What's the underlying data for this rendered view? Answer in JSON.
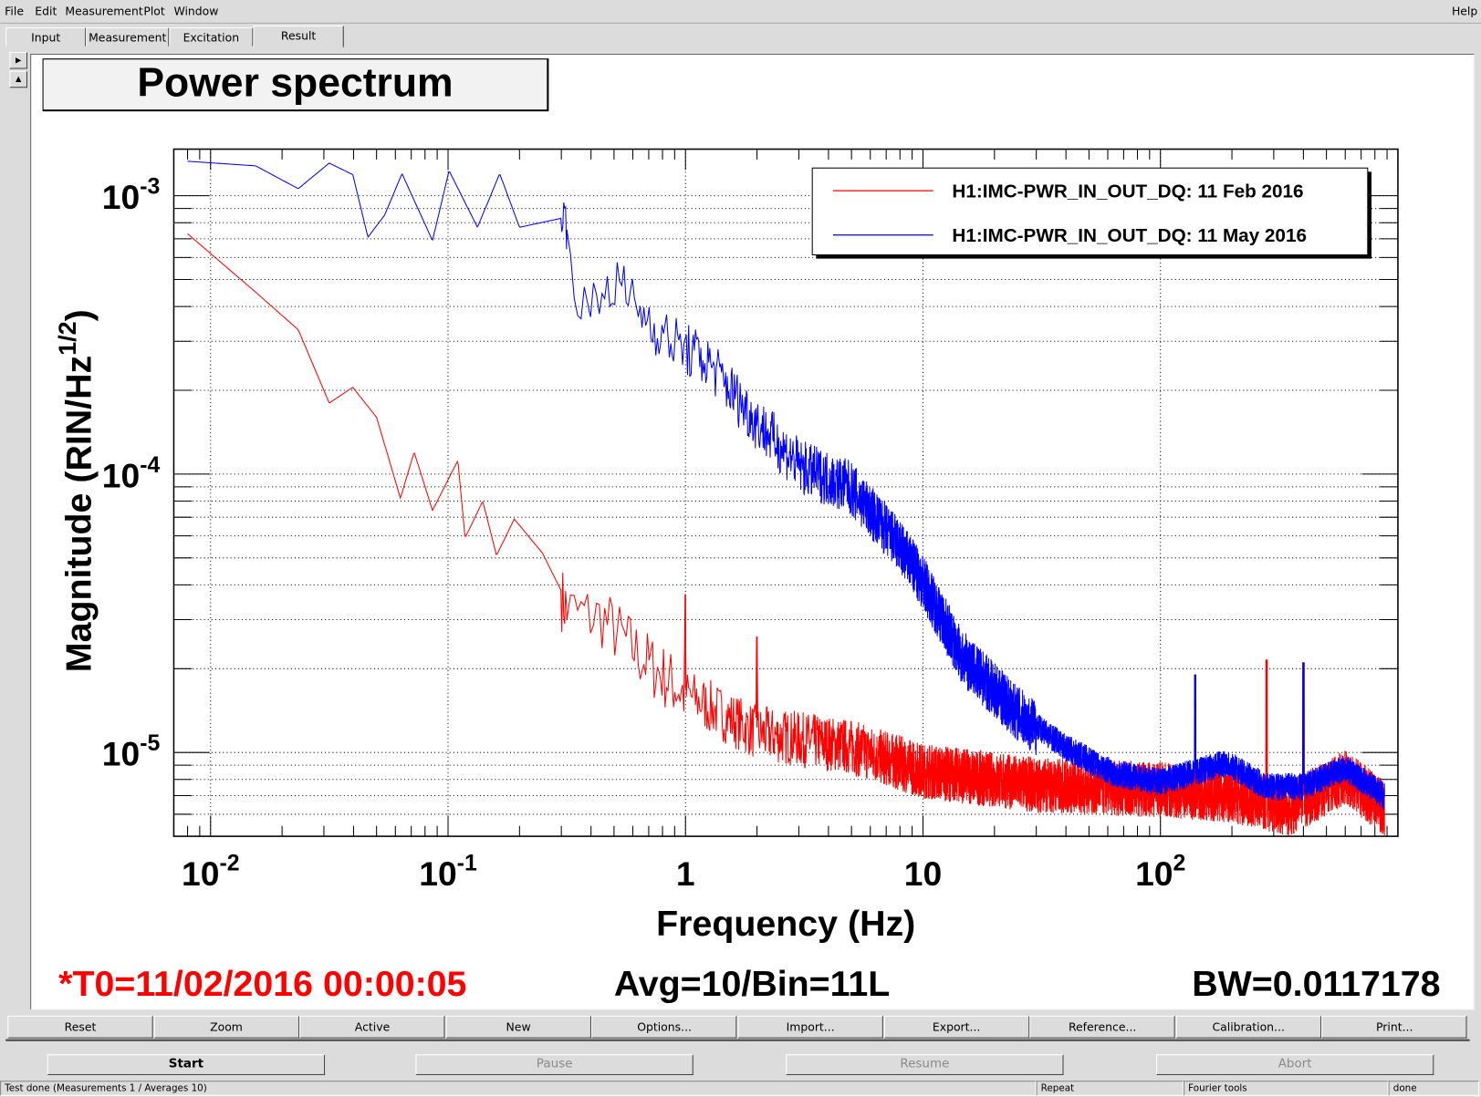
{
  "menu": {
    "items": [
      "File",
      "Edit",
      "Measurement",
      "Plot",
      "Window"
    ],
    "help": "Help"
  },
  "tabs": [
    {
      "label": "Input"
    },
    {
      "label": "Measurement"
    },
    {
      "label": "Excitation"
    },
    {
      "label": "Result",
      "active": true
    }
  ],
  "side_buttons": {
    "right_arrow": "arrow-right-icon",
    "up_arrow": "arrow-up-icon"
  },
  "plot": {
    "title": "Power spectrum",
    "t0": "*T0=11/02/2016 00:00:05",
    "avg": "Avg=10/Bin=11L",
    "bw": "BW=0.0117178",
    "colors": {
      "red": "#ff0000",
      "blue": "#0000ff",
      "t0": "#ff0000"
    }
  },
  "chart_data": {
    "type": "line",
    "title": "Power spectrum",
    "xlabel": "Frequency (Hz)",
    "ylabel_main": "Magnitude (RIN/Hz",
    "ylabel_sup": "1/2",
    "ylabel_end": ")",
    "xscale": "log",
    "yscale": "log",
    "xlim": [
      0.007,
      1000
    ],
    "ylim": [
      5e-06,
      0.00147
    ],
    "grid": true,
    "legend_placement": "top-right",
    "x_ticks": [
      {
        "value": 0.01,
        "base": "10",
        "exp": "-2"
      },
      {
        "value": 0.1,
        "base": "10",
        "exp": "-1"
      },
      {
        "value": 1,
        "base": "1",
        "exp": ""
      },
      {
        "value": 10,
        "base": "10",
        "exp": ""
      },
      {
        "value": 100,
        "base": "10",
        "exp": "2"
      }
    ],
    "y_ticks": [
      {
        "value": 0.001,
        "base": "10",
        "exp": "-3"
      },
      {
        "value": 0.0001,
        "base": "10",
        "exp": "-4"
      },
      {
        "value": 1e-05,
        "base": "10",
        "exp": "-5"
      }
    ],
    "series": [
      {
        "name": "H1:IMC-PWR_IN_OUT_DQ: 11 Feb 2016",
        "color": "#ff0000",
        "points": [
          [
            0.008,
            0.00073
          ],
          [
            0.0155,
            0.00045
          ],
          [
            0.0234,
            0.00033
          ],
          [
            0.0316,
            0.00018
          ],
          [
            0.0397,
            0.000205
          ],
          [
            0.05,
            0.00016
          ],
          [
            0.063,
            8.2e-05
          ],
          [
            0.072,
            0.00012
          ],
          [
            0.086,
            7.4e-05
          ],
          [
            0.11,
            0.000112
          ],
          [
            0.118,
            5.9e-05
          ],
          [
            0.14,
            8e-05
          ],
          [
            0.16,
            5.1e-05
          ],
          [
            0.19,
            6.9e-05
          ],
          [
            0.25,
            5.2e-05
          ],
          [
            0.32,
            3.4e-05
          ],
          [
            0.45,
            3.2e-05
          ],
          [
            0.66,
            2.3e-05
          ],
          [
            1,
            1.7e-05
          ],
          [
            2,
            1.23e-05
          ],
          [
            4.9,
            1.1e-05
          ],
          [
            10,
            9e-06
          ],
          [
            30,
            8e-06
          ],
          [
            100,
            7.7e-06
          ],
          [
            190,
            7.4e-06
          ],
          [
            350,
            6.6e-06
          ],
          [
            600,
            8.5e-06
          ],
          [
            880,
            6.6e-06
          ]
        ],
        "peaks": [
          [
            1.0,
            3.7e-05
          ],
          [
            2.0,
            2.6e-05
          ],
          [
            280,
            2.15e-05
          ],
          [
            400,
            2.1e-05
          ]
        ]
      },
      {
        "name": "H1:IMC-PWR_IN_OUT_DQ: 11 May 2016",
        "color": "#0000ff",
        "points": [
          [
            0.008,
            0.00133
          ],
          [
            0.0155,
            0.00128
          ],
          [
            0.0234,
            0.00106
          ],
          [
            0.0316,
            0.00131
          ],
          [
            0.0397,
            0.00119
          ],
          [
            0.046,
            0.00071
          ],
          [
            0.054,
            0.00085
          ],
          [
            0.064,
            0.0012
          ],
          [
            0.086,
            0.00069
          ],
          [
            0.101,
            0.00123
          ],
          [
            0.133,
            0.00077
          ],
          [
            0.165,
            0.0012
          ],
          [
            0.2,
            0.00077
          ],
          [
            0.32,
            0.00084
          ],
          [
            0.36,
            0.00038
          ],
          [
            0.5,
            0.00052
          ],
          [
            0.8,
            0.00033
          ],
          [
            1.27,
            0.00026
          ],
          [
            2,
            0.00016
          ],
          [
            3.1,
            0.00011
          ],
          [
            4.9,
            9.4e-05
          ],
          [
            7.8,
            5.9e-05
          ],
          [
            10,
            4.3e-05
          ],
          [
            14.6,
            2.3e-05
          ],
          [
            25,
            1.45e-05
          ],
          [
            40,
            1.06e-05
          ],
          [
            64,
            8.6e-06
          ],
          [
            100,
            8e-06
          ],
          [
            190,
            9.4e-06
          ],
          [
            280,
            7.7e-06
          ],
          [
            400,
            7.7e-06
          ],
          [
            600,
            9e-06
          ],
          [
            880,
            7.1e-06
          ]
        ],
        "peaks": [
          [
            140,
            1.9e-05
          ],
          [
            400,
            2.1e-05
          ]
        ]
      }
    ]
  },
  "buttons_row1": [
    "Reset",
    "Zoom",
    "Active",
    "New",
    "Options...",
    "Import...",
    "Export...",
    "Reference...",
    "Calibration...",
    "Print..."
  ],
  "buttons_row2": [
    {
      "label": "Start",
      "enabled": true
    },
    {
      "label": "Pause",
      "enabled": false
    },
    {
      "label": "Resume",
      "enabled": false
    },
    {
      "label": "Abort",
      "enabled": false
    }
  ],
  "status": [
    "Test done (Measurements 1 / Averages 10)",
    "Repeat",
    "Fourier tools",
    "done"
  ]
}
